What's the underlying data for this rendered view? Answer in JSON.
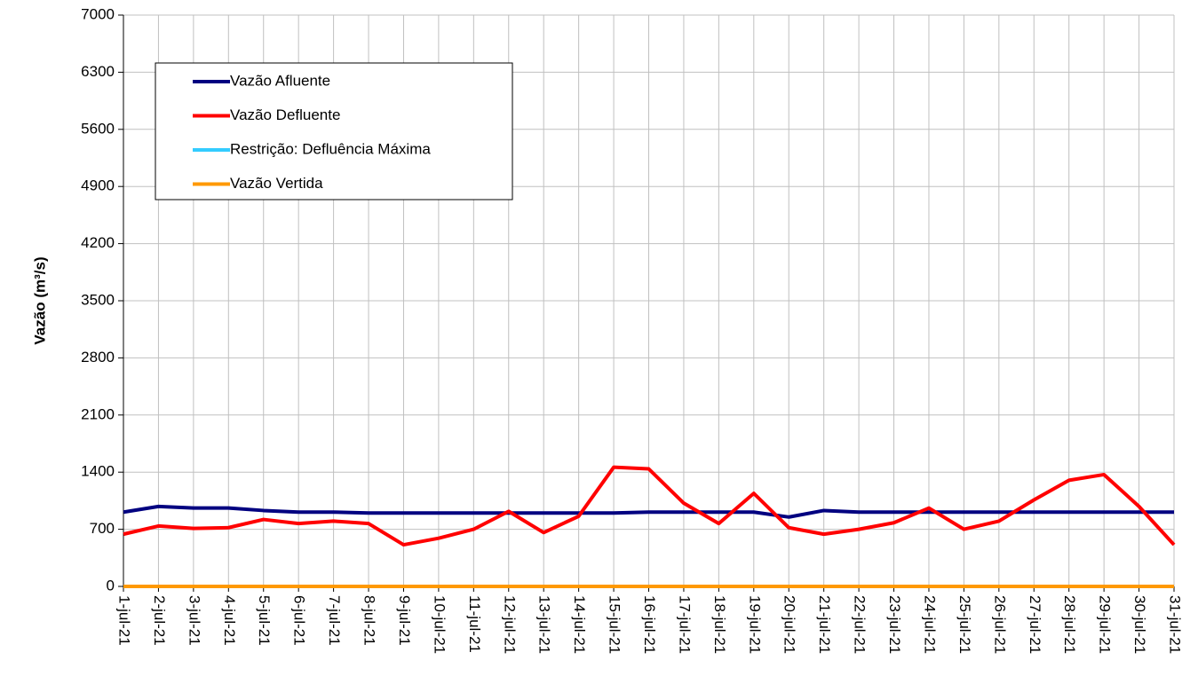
{
  "chart_data": {
    "type": "line",
    "y_label": "Vazão (m³/s)",
    "categories": [
      "1-jul-21",
      "2-jul-21",
      "3-jul-21",
      "4-jul-21",
      "5-jul-21",
      "6-jul-21",
      "7-jul-21",
      "8-jul-21",
      "9-jul-21",
      "10-jul-21",
      "11-jul-21",
      "12-jul-21",
      "13-jul-21",
      "14-jul-21",
      "15-jul-21",
      "16-jul-21",
      "17-jul-21",
      "18-jul-21",
      "19-jul-21",
      "20-jul-21",
      "21-jul-21",
      "22-jul-21",
      "23-jul-21",
      "24-jul-21",
      "25-jul-21",
      "26-jul-21",
      "27-jul-21",
      "28-jul-21",
      "29-jul-21",
      "30-jul-21",
      "31-jul-21"
    ],
    "series": [
      {
        "name": "Vazão Afluente",
        "color": "#000080",
        "values": [
          910,
          980,
          960,
          960,
          930,
          910,
          910,
          900,
          900,
          900,
          900,
          900,
          900,
          900,
          900,
          910,
          910,
          910,
          910,
          850,
          930,
          910,
          910,
          910,
          910,
          910,
          910,
          910,
          910,
          910,
          910
        ]
      },
      {
        "name": "Vazão Defluente",
        "color": "#ff0000",
        "values": [
          640,
          740,
          710,
          720,
          820,
          770,
          800,
          770,
          510,
          590,
          700,
          920,
          660,
          860,
          1460,
          1440,
          1020,
          770,
          1140,
          720,
          640,
          700,
          780,
          960,
          700,
          800,
          1060,
          1300,
          1370,
          980,
          510
        ]
      },
      {
        "name": "Restrição: Defluência Máxima",
        "color": "#33ccff",
        "values": [
          null,
          null,
          null,
          null,
          null,
          null,
          null,
          null,
          null,
          null,
          null,
          null,
          null,
          null,
          null,
          null,
          null,
          null,
          null,
          null,
          null,
          null,
          null,
          null,
          null,
          null,
          null,
          null,
          null,
          null,
          null
        ]
      },
      {
        "name": "Vazão Vertida",
        "color": "#ff9900",
        "values": [
          0,
          0,
          0,
          0,
          0,
          0,
          0,
          0,
          0,
          0,
          0,
          0,
          0,
          0,
          0,
          0,
          0,
          0,
          0,
          0,
          0,
          0,
          0,
          0,
          0,
          0,
          0,
          0,
          0,
          0,
          0
        ]
      }
    ],
    "ylim": [
      0,
      7000
    ],
    "yticks": [
      0,
      700,
      1400,
      2100,
      2800,
      3500,
      4200,
      4900,
      5600,
      6300,
      7000
    ],
    "grid": true,
    "legend": "upper-left"
  }
}
